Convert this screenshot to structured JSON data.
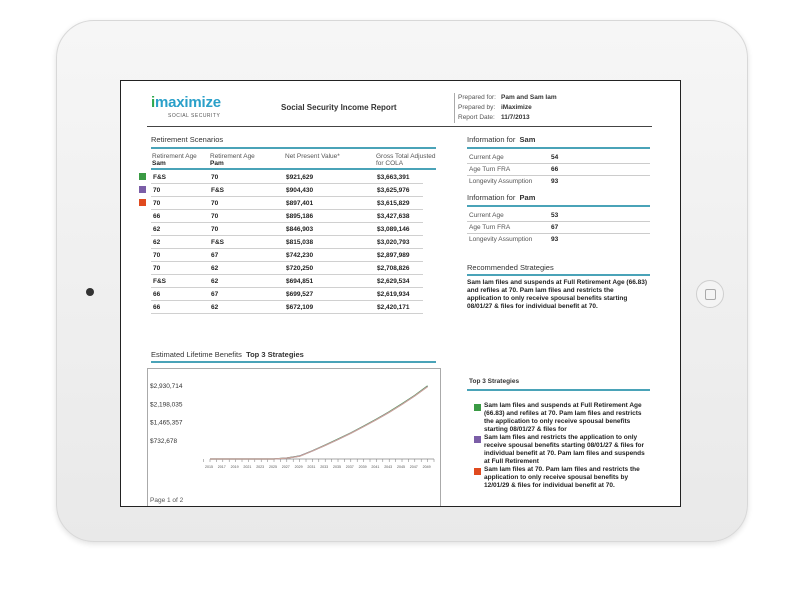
{
  "header": {
    "logo_i": "i",
    "logo_main": "maximize",
    "logo_sub": "SOCIAL SECURITY",
    "report_title": "Social Security Income Report",
    "meta": [
      {
        "k": "Prepared for:",
        "v": "Pam and Sam Iam"
      },
      {
        "k": "Prepared by:",
        "v": "iMaximize"
      },
      {
        "k": "Report Date:",
        "v": "11/7/2013"
      }
    ]
  },
  "scenarios": {
    "title": "Retirement Scenarios",
    "headers": {
      "sam_age": "Retirement Age",
      "sam_name": "Sam",
      "pam_age": "Retirement Age",
      "pam_name": "Pam",
      "npv": "Net Present Value*",
      "gross1": "Gross Total Adjusted",
      "gross2": "for COLA"
    },
    "rows": [
      {
        "sam": "F&S",
        "pam": "70",
        "npv": "$921,629",
        "gross": "$3,663,391"
      },
      {
        "sam": "70",
        "pam": "F&S",
        "npv": "$904,430",
        "gross": "$3,625,976"
      },
      {
        "sam": "70",
        "pam": "70",
        "npv": "$897,401",
        "gross": "$3,615,829"
      },
      {
        "sam": "66",
        "pam": "70",
        "npv": "$895,186",
        "gross": "$3,427,638"
      },
      {
        "sam": "62",
        "pam": "70",
        "npv": "$846,903",
        "gross": "$3,089,146"
      },
      {
        "sam": "62",
        "pam": "F&S",
        "npv": "$815,038",
        "gross": "$3,020,793"
      },
      {
        "sam": "70",
        "pam": "67",
        "npv": "$742,230",
        "gross": "$2,897,989"
      },
      {
        "sam": "70",
        "pam": "62",
        "npv": "$720,250",
        "gross": "$2,708,826"
      },
      {
        "sam": "F&S",
        "pam": "62",
        "npv": "$694,851",
        "gross": "$2,629,534"
      },
      {
        "sam": "66",
        "pam": "67",
        "npv": "$699,527",
        "gross": "$2,619,934"
      },
      {
        "sam": "66",
        "pam": "62",
        "npv": "$672,109",
        "gross": "$2,420,171"
      }
    ],
    "swatch_colors": [
      "#3a9a44",
      "#7b5ea7",
      "#e04a1f"
    ]
  },
  "info_sam": {
    "title": "Information for",
    "name": "Sam",
    "rows": [
      {
        "k": "Current Age",
        "v": "54"
      },
      {
        "k": "Age Turn FRA",
        "v": "66"
      },
      {
        "k": "Longevity Assumption",
        "v": "93"
      }
    ]
  },
  "info_pam": {
    "title": "Information for",
    "name": "Pam",
    "rows": [
      {
        "k": "Current Age",
        "v": "53"
      },
      {
        "k": "Age Turn FRA",
        "v": "67"
      },
      {
        "k": "Longevity Assumption",
        "v": "93"
      }
    ]
  },
  "recommended": {
    "title": "Recommended Strategies",
    "text": "Sam Iam files and suspends at Full Retirement Age (66.83) and refiles at 70. Pam Iam files and restricts the application to only receive spousal benefits starting 08/01/27 & files for individual benefit at 70."
  },
  "benefits": {
    "title": "Estimated Lifetime Benefits",
    "subtitle": "Top 3 Strategies"
  },
  "top3": {
    "title": "Top 3 Strategies",
    "items": [
      "Sam Iam files and suspends at Full Retirement Age (66.83) and refiles at 70. Pam Iam files and restricts the application to only receive spousal benefits starting 08/01/27 & files for",
      "Sam Iam files and restricts the application to only receive spousal benefits starting 08/01/27 & files for individual benefit at 70. Pam Iam files and suspends at Full Retirement",
      "Sam Iam files at 70. Pam Iam files and restricts the application to only receive spousal benefits by 12/01/29 & files for individual benefit at 70."
    ]
  },
  "chart_data": {
    "type": "line",
    "title": "Estimated Lifetime Benefits",
    "subtitle": "Top 3 Strategies",
    "xlabel": "",
    "ylabel": "",
    "x": [
      2015,
      2017,
      2019,
      2021,
      2023,
      2025,
      2027,
      2029,
      2031,
      2033,
      2035,
      2037,
      2039,
      2041,
      2043,
      2045,
      2047,
      2049
    ],
    "ytick_labels": [
      "$732,678",
      "$1,465,357",
      "$2,198,035",
      "$2,930,714"
    ],
    "yticks": [
      732678,
      1465357,
      2198035,
      2930714
    ],
    "ylim": [
      0,
      3300000
    ],
    "xlim": [
      2015,
      2050
    ],
    "series": [
      {
        "color": "#3a9a44",
        "values": [
          0,
          0,
          0,
          0,
          0,
          0,
          40000,
          120000,
          330000,
          560000,
          800000,
          1050000,
          1320000,
          1600000,
          1900000,
          2220000,
          2560000,
          2940000
        ]
      },
      {
        "color": "#7b5ea7",
        "values": [
          0,
          0,
          0,
          0,
          0,
          0,
          38000,
          115000,
          325000,
          552000,
          790000,
          1040000,
          1308000,
          1588000,
          1885000,
          2205000,
          2545000,
          2920000
        ]
      },
      {
        "color": "#c9a59a",
        "values": [
          0,
          0,
          0,
          0,
          0,
          0,
          35000,
          110000,
          320000,
          548000,
          786000,
          1035000,
          1302000,
          1582000,
          1878000,
          2198000,
          2538000,
          2912000
        ]
      }
    ],
    "grid": false,
    "legend": "none"
  },
  "footer": {
    "page": "Page 1 of 2"
  }
}
